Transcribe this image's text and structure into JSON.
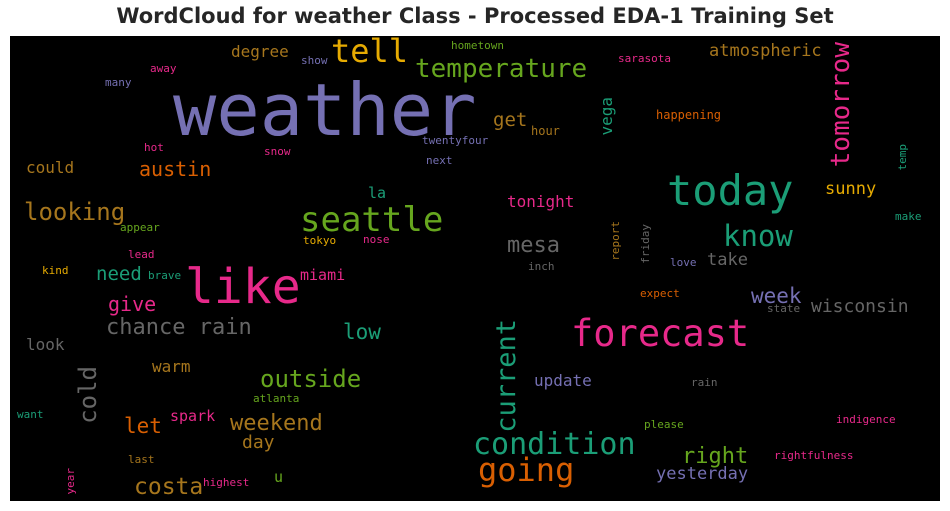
{
  "chart_data": {
    "type": "wordcloud",
    "title": "WordCloud for weather Class - Processed EDA-1 Training Set",
    "palette": [
      "#7570b3",
      "#d95f02",
      "#1b9e77",
      "#e7298a",
      "#66a61e",
      "#e6ab02",
      "#a6761d",
      "#666666"
    ],
    "words": [
      {
        "text": "weather",
        "color": "#7570b3",
        "orientation": "horizontal"
      },
      {
        "text": "like",
        "color": "#e7298a",
        "orientation": "horizontal"
      },
      {
        "text": "today",
        "color": "#1b9e77",
        "orientation": "horizontal"
      },
      {
        "text": "forecast",
        "color": "#e7298a",
        "orientation": "horizontal"
      },
      {
        "text": "seattle",
        "color": "#66a61e",
        "orientation": "horizontal"
      },
      {
        "text": "tell",
        "color": "#e6ab02",
        "orientation": "horizontal"
      },
      {
        "text": "temperature",
        "color": "#66a61e",
        "orientation": "horizontal"
      },
      {
        "text": "tomorrow",
        "color": "#e7298a",
        "orientation": "vertical"
      },
      {
        "text": "condition",
        "color": "#1b9e77",
        "orientation": "horizontal"
      },
      {
        "text": "going",
        "color": "#d95f02",
        "orientation": "horizontal"
      },
      {
        "text": "know",
        "color": "#1b9e77",
        "orientation": "horizontal"
      },
      {
        "text": "current",
        "color": "#1b9e77",
        "orientation": "vertical"
      },
      {
        "text": "looking",
        "color": "#a6761d",
        "orientation": "horizontal"
      },
      {
        "text": "chance rain",
        "color": "#666666",
        "orientation": "horizontal"
      },
      {
        "text": "outside",
        "color": "#66a61e",
        "orientation": "horizontal"
      },
      {
        "text": "weekend",
        "color": "#a6761d",
        "orientation": "horizontal"
      },
      {
        "text": "costa",
        "color": "#a6761d",
        "orientation": "horizontal"
      },
      {
        "text": "mesa",
        "color": "#666666",
        "orientation": "horizontal"
      },
      {
        "text": "cold",
        "color": "#666666",
        "orientation": "vertical"
      },
      {
        "text": "right",
        "color": "#66a61e",
        "orientation": "horizontal"
      },
      {
        "text": "week",
        "color": "#7570b3",
        "orientation": "horizontal"
      },
      {
        "text": "wisconsin",
        "color": "#666666",
        "orientation": "horizontal"
      },
      {
        "text": "austin",
        "color": "#d95f02",
        "orientation": "horizontal"
      },
      {
        "text": "give",
        "color": "#e7298a",
        "orientation": "horizontal"
      },
      {
        "text": "get",
        "color": "#a6761d",
        "orientation": "horizontal"
      },
      {
        "text": "let",
        "color": "#d95f02",
        "orientation": "horizontal"
      },
      {
        "text": "low",
        "color": "#1b9e77",
        "orientation": "horizontal"
      },
      {
        "text": "need",
        "color": "#1b9e77",
        "orientation": "horizontal"
      },
      {
        "text": "atmospheric",
        "color": "#a6761d",
        "orientation": "horizontal"
      },
      {
        "text": "yesterday",
        "color": "#7570b3",
        "orientation": "horizontal"
      },
      {
        "text": "take",
        "color": "#666666",
        "orientation": "horizontal"
      },
      {
        "text": "sunny",
        "color": "#e6ab02",
        "orientation": "horizontal"
      },
      {
        "text": "day",
        "color": "#a6761d",
        "orientation": "horizontal"
      },
      {
        "text": "degree",
        "color": "#a6761d",
        "orientation": "horizontal"
      },
      {
        "text": "tonight",
        "color": "#e7298a",
        "orientation": "horizontal"
      },
      {
        "text": "update",
        "color": "#7570b3",
        "orientation": "horizontal"
      },
      {
        "text": "could",
        "color": "#a6761d",
        "orientation": "horizontal"
      },
      {
        "text": "look",
        "color": "#666666",
        "orientation": "horizontal"
      },
      {
        "text": "warm",
        "color": "#a6761d",
        "orientation": "horizontal"
      },
      {
        "text": "vega",
        "color": "#1b9e77",
        "orientation": "vertical"
      },
      {
        "text": "miami",
        "color": "#e7298a",
        "orientation": "horizontal"
      },
      {
        "text": "spark",
        "color": "#e7298a",
        "orientation": "horizontal"
      },
      {
        "text": "la",
        "color": "#1b9e77",
        "orientation": "horizontal"
      },
      {
        "text": "u",
        "color": "#66a61e",
        "orientation": "horizontal"
      },
      {
        "text": "hometown",
        "color": "#66a61e",
        "orientation": "horizontal"
      },
      {
        "text": "show",
        "color": "#7570b3",
        "orientation": "horizontal"
      },
      {
        "text": "sarasota",
        "color": "#e7298a",
        "orientation": "horizontal"
      },
      {
        "text": "away",
        "color": "#e7298a",
        "orientation": "horizontal"
      },
      {
        "text": "many",
        "color": "#7570b3",
        "orientation": "horizontal"
      },
      {
        "text": "happening",
        "color": "#d95f02",
        "orientation": "horizontal"
      },
      {
        "text": "hour",
        "color": "#a6761d",
        "orientation": "horizontal"
      },
      {
        "text": "hot",
        "color": "#e7298a",
        "orientation": "horizontal"
      },
      {
        "text": "snow",
        "color": "#e7298a",
        "orientation": "horizontal"
      },
      {
        "text": "twentyfour",
        "color": "#7570b3",
        "orientation": "horizontal"
      },
      {
        "text": "next",
        "color": "#7570b3",
        "orientation": "horizontal"
      },
      {
        "text": "temp",
        "color": "#1b9e77",
        "orientation": "vertical"
      },
      {
        "text": "make",
        "color": "#1b9e77",
        "orientation": "horizontal"
      },
      {
        "text": "appear",
        "color": "#66a61e",
        "orientation": "horizontal"
      },
      {
        "text": "tokyo",
        "color": "#e6ab02",
        "orientation": "horizontal"
      },
      {
        "text": "nose",
        "color": "#e7298a",
        "orientation": "horizontal"
      },
      {
        "text": "report",
        "color": "#a6761d",
        "orientation": "vertical"
      },
      {
        "text": "friday",
        "color": "#666666",
        "orientation": "vertical"
      },
      {
        "text": "lead",
        "color": "#e7298a",
        "orientation": "horizontal"
      },
      {
        "text": "brave",
        "color": "#1b9e77",
        "orientation": "horizontal"
      },
      {
        "text": "kind",
        "color": "#e6ab02",
        "orientation": "horizontal"
      },
      {
        "text": "inch",
        "color": "#666666",
        "orientation": "horizontal"
      },
      {
        "text": "love",
        "color": "#7570b3",
        "orientation": "horizontal"
      },
      {
        "text": "expect",
        "color": "#d95f02",
        "orientation": "horizontal"
      },
      {
        "text": "state",
        "color": "#666666",
        "orientation": "horizontal"
      },
      {
        "text": "rain",
        "color": "#666666",
        "orientation": "horizontal"
      },
      {
        "text": "atlanta",
        "color": "#66a61e",
        "orientation": "horizontal"
      },
      {
        "text": "want",
        "color": "#1b9e77",
        "orientation": "horizontal"
      },
      {
        "text": "please",
        "color": "#66a61e",
        "orientation": "horizontal"
      },
      {
        "text": "indigence",
        "color": "#e7298a",
        "orientation": "horizontal"
      },
      {
        "text": "last",
        "color": "#a6761d",
        "orientation": "horizontal"
      },
      {
        "text": "rightfulness",
        "color": "#e7298a",
        "orientation": "horizontal"
      },
      {
        "text": "year",
        "color": "#e7298a",
        "orientation": "vertical"
      },
      {
        "text": "highest",
        "color": "#e7298a",
        "orientation": "horizontal"
      }
    ]
  }
}
